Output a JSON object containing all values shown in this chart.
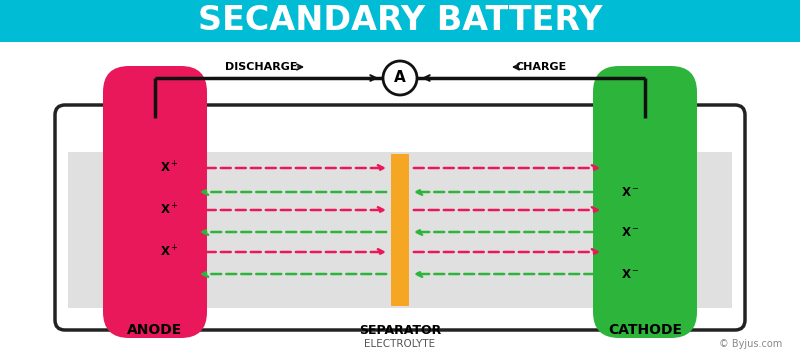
{
  "title": "SECANDARY BATTERY",
  "title_bg": "#00BCD4",
  "title_color": "#ffffff",
  "title_fontsize": 24,
  "fig_bg": "#ffffff",
  "diagram_bg": "#e0e0e0",
  "anode_color": "#E8185A",
  "cathode_color": "#2DB53B",
  "separator_color": "#F5A623",
  "anode_label": "ANODE",
  "cathode_label": "CATHODE",
  "separator_label": "SEPARATOR",
  "electrolyte_label": "ELECTROLYTE",
  "discharge_label": "DISCHARGE →",
  "charge_label": "← CHARGE",
  "ammeter_label": "A",
  "arrow_pink": "#E8185A",
  "arrow_green": "#2DB53B",
  "label_color": "#000000",
  "byjus_text": "© Byjus.com",
  "container_edge": "#222222",
  "wire_color": "#111111"
}
